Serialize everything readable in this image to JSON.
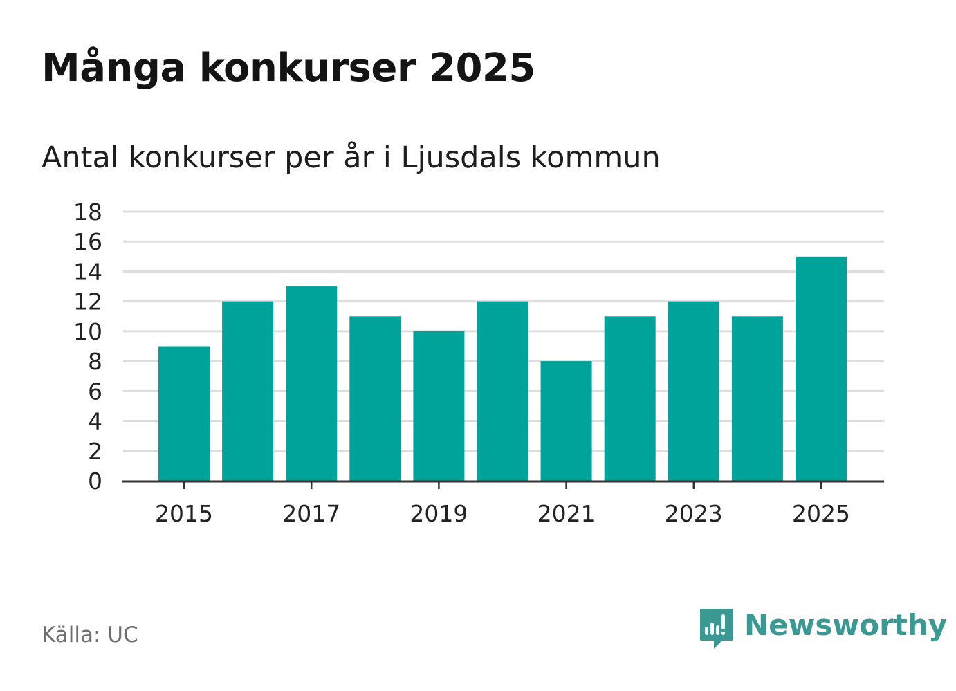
{
  "header": {
    "title": "Många konkurser 2025",
    "subtitle": "Antal konkurser per år i Ljusdals kommun"
  },
  "footer": {
    "source": "Källa: UC",
    "brand_name": "Newsworthy",
    "brand_icon": "bar-chart-speech-bubble-icon"
  },
  "colors": {
    "bar": "#00a39a",
    "grid": "#dddddd",
    "axis": "#333333",
    "brand": "#3a9a93"
  },
  "chart_data": {
    "type": "bar",
    "title": "Många konkurser 2025",
    "subtitle": "Antal konkurser per år i Ljusdals kommun",
    "xlabel": "",
    "ylabel": "",
    "categories": [
      "2015",
      "2016",
      "2017",
      "2018",
      "2019",
      "2020",
      "2021",
      "2022",
      "2023",
      "2024",
      "2025"
    ],
    "values": [
      9,
      12,
      13,
      11,
      10,
      12,
      8,
      11,
      12,
      11,
      15
    ],
    "ylim": [
      0,
      18
    ],
    "yticks": [
      0,
      2,
      4,
      6,
      8,
      10,
      12,
      14,
      16,
      18
    ],
    "xtick_labels": [
      "2015",
      "2017",
      "2019",
      "2021",
      "2023",
      "2025"
    ],
    "grid": true,
    "legend": "none"
  }
}
